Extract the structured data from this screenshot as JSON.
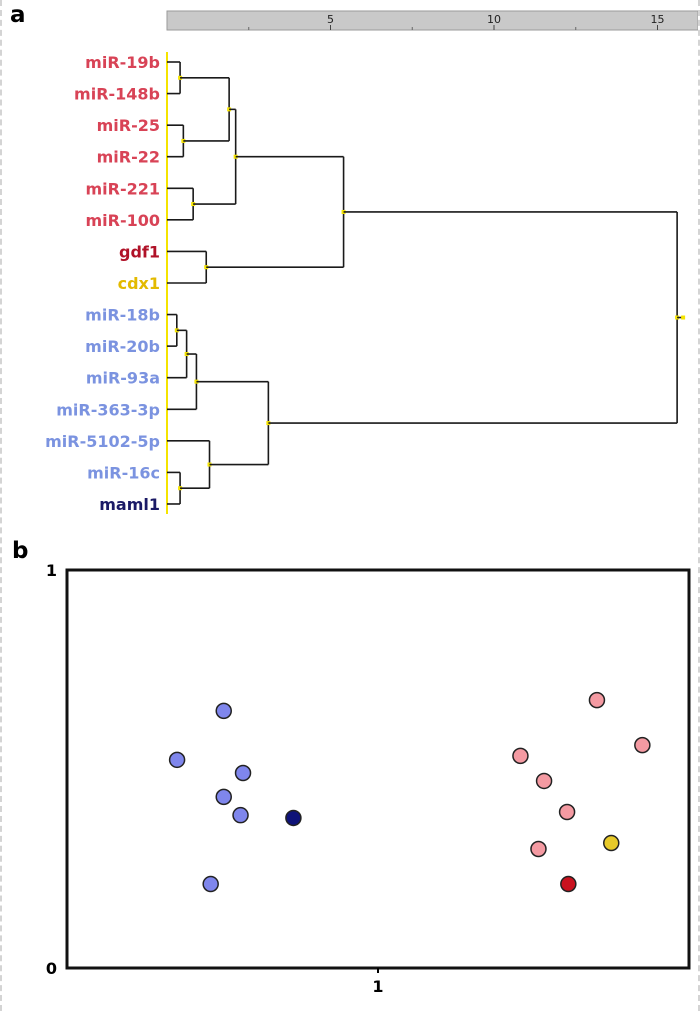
{
  "figure": {
    "panel_a_label": "a",
    "panel_b_label": "b"
  },
  "colors": {
    "crimson": "#d84356",
    "dark_red": "#b01228",
    "gold": "#e3ba00",
    "cornflower": "#7b93e0",
    "navy": "#1b1a66",
    "line": "#1a1a1a",
    "junction": "#f5e400",
    "ruler_fill": "#c9c9c9",
    "ruler_edge": "#9a9a9a",
    "scatter_blue": "#7f86ec",
    "scatter_pink": "#f49aa2",
    "scatter_navy": "#0e1278",
    "scatter_yellow": "#e7c929",
    "scatter_red": "#c9121f",
    "point_outline": "#222222",
    "plot_border": "#111111"
  },
  "chart_data": [
    {
      "type": "dendrogram",
      "title": "",
      "axis": {
        "ticks": [
          5,
          10,
          15
        ],
        "minor_ticks": [
          2.5,
          7.5,
          12.5
        ],
        "max": 16.2
      },
      "leaves": [
        {
          "name": "miR-19b",
          "color_key": "crimson"
        },
        {
          "name": "miR-148b",
          "color_key": "crimson"
        },
        {
          "name": "miR-25",
          "color_key": "crimson"
        },
        {
          "name": "miR-22",
          "color_key": "crimson"
        },
        {
          "name": "miR-221",
          "color_key": "crimson"
        },
        {
          "name": "miR-100",
          "color_key": "crimson"
        },
        {
          "name": "gdf1",
          "color_key": "dark_red"
        },
        {
          "name": "cdx1",
          "color_key": "gold"
        },
        {
          "name": "miR-18b",
          "color_key": "cornflower"
        },
        {
          "name": "miR-20b",
          "color_key": "cornflower"
        },
        {
          "name": "miR-93a",
          "color_key": "cornflower"
        },
        {
          "name": "miR-363-3p",
          "color_key": "cornflower"
        },
        {
          "name": "miR-5102-5p",
          "color_key": "cornflower"
        },
        {
          "name": "miR-16c",
          "color_key": "cornflower"
        },
        {
          "name": "maml1",
          "color_key": "navy"
        }
      ],
      "merges": [
        {
          "id": 15,
          "a": 0,
          "b": 1,
          "d": 0.4
        },
        {
          "id": 16,
          "a": 2,
          "b": 3,
          "d": 0.5
        },
        {
          "id": 17,
          "a": 15,
          "b": 16,
          "d": 1.9
        },
        {
          "id": 18,
          "a": 4,
          "b": 5,
          "d": 0.8
        },
        {
          "id": 19,
          "a": 17,
          "b": 18,
          "d": 2.1
        },
        {
          "id": 20,
          "a": 6,
          "b": 7,
          "d": 1.2
        },
        {
          "id": 21,
          "a": 19,
          "b": 20,
          "d": 5.4
        },
        {
          "id": 22,
          "a": 8,
          "b": 9,
          "d": 0.3
        },
        {
          "id": 23,
          "a": 22,
          "b": 10,
          "d": 0.6
        },
        {
          "id": 24,
          "a": 23,
          "b": 11,
          "d": 0.9
        },
        {
          "id": 25,
          "a": 13,
          "b": 14,
          "d": 0.4
        },
        {
          "id": 26,
          "a": 12,
          "b": 25,
          "d": 1.3
        },
        {
          "id": 27,
          "a": 24,
          "b": 26,
          "d": 3.1
        },
        {
          "id": 28,
          "a": 21,
          "b": 27,
          "d": 15.6
        }
      ]
    },
    {
      "type": "scatter",
      "x_ticks": [
        {
          "label": "1",
          "frac": 0.5
        }
      ],
      "y_ticks": [
        {
          "label": "1",
          "frac": 1.0
        },
        {
          "label": "0",
          "frac": 0.0
        }
      ],
      "points": [
        {
          "x": 0.252,
          "y": 0.646,
          "color_key": "scatter_blue"
        },
        {
          "x": 0.177,
          "y": 0.523,
          "color_key": "scatter_blue"
        },
        {
          "x": 0.283,
          "y": 0.49,
          "color_key": "scatter_blue"
        },
        {
          "x": 0.252,
          "y": 0.43,
          "color_key": "scatter_blue"
        },
        {
          "x": 0.279,
          "y": 0.384,
          "color_key": "scatter_blue"
        },
        {
          "x": 0.231,
          "y": 0.211,
          "color_key": "scatter_blue"
        },
        {
          "x": 0.364,
          "y": 0.377,
          "color_key": "scatter_navy"
        },
        {
          "x": 0.852,
          "y": 0.673,
          "color_key": "scatter_pink"
        },
        {
          "x": 0.729,
          "y": 0.533,
          "color_key": "scatter_pink"
        },
        {
          "x": 0.925,
          "y": 0.56,
          "color_key": "scatter_pink"
        },
        {
          "x": 0.767,
          "y": 0.47,
          "color_key": "scatter_pink"
        },
        {
          "x": 0.804,
          "y": 0.392,
          "color_key": "scatter_pink"
        },
        {
          "x": 0.758,
          "y": 0.299,
          "color_key": "scatter_pink"
        },
        {
          "x": 0.875,
          "y": 0.314,
          "color_key": "scatter_yellow"
        },
        {
          "x": 0.806,
          "y": 0.211,
          "color_key": "scatter_red"
        }
      ]
    }
  ]
}
